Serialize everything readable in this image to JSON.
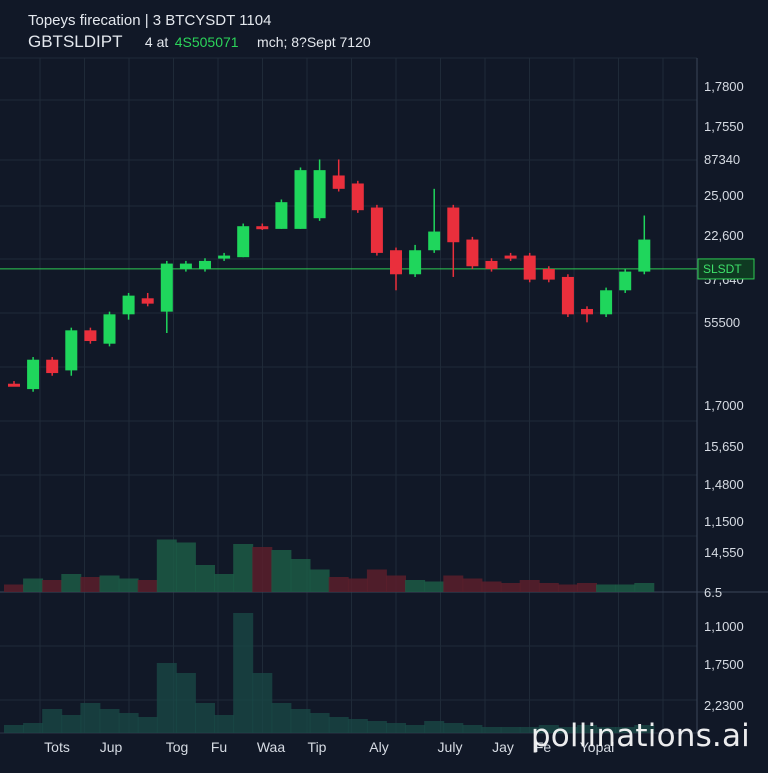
{
  "header": {
    "title": "Topeys firecation | 3 BTCYSDT 1104",
    "symbol": "GBTSLDIPT",
    "price_label": "4 at",
    "price_value": "4S505071",
    "meta": "mch; 8?Sept 7120"
  },
  "watermark": "pollinations.ai",
  "colors": {
    "background": "#111827",
    "grid": "#1f2a38",
    "up": "#1fd65c",
    "down": "#ea2f3c",
    "price_line": "#2ecc53",
    "axis_text": "#d6dbe3"
  },
  "chart_data": {
    "type": "candlestick",
    "price_scale": {
      "tick_labels": [
        "1,7800",
        "1,7550",
        "87340",
        "25,000",
        "22,600",
        "57,640",
        "55500",
        "1,7000",
        "15,650",
        "1,4800",
        "1,1500",
        "14,550",
        "6.5"
      ],
      "price_tag": "SLSDT",
      "price_tag_level": 0.605
    },
    "volume_scale": {
      "tick_labels": [
        "1,1000",
        "1,7500",
        "2,2300"
      ]
    },
    "x_axis": {
      "tick_labels": [
        "Tots",
        "Jup",
        "Tog",
        "Fu",
        "Waa",
        "Tip",
        "Aly",
        "July",
        "Jay",
        "Fe",
        "Yopal"
      ]
    },
    "candles": [
      {
        "o": 0.39,
        "c": 0.388,
        "h": 0.395,
        "l": 0.386
      },
      {
        "o": 0.38,
        "c": 0.435,
        "h": 0.44,
        "l": 0.375
      },
      {
        "o": 0.435,
        "c": 0.41,
        "h": 0.44,
        "l": 0.405
      },
      {
        "o": 0.415,
        "c": 0.49,
        "h": 0.495,
        "l": 0.405
      },
      {
        "o": 0.49,
        "c": 0.47,
        "h": 0.495,
        "l": 0.465
      },
      {
        "o": 0.465,
        "c": 0.52,
        "h": 0.525,
        "l": 0.46
      },
      {
        "o": 0.52,
        "c": 0.555,
        "h": 0.56,
        "l": 0.51
      },
      {
        "o": 0.55,
        "c": 0.54,
        "h": 0.56,
        "l": 0.535
      },
      {
        "o": 0.525,
        "c": 0.615,
        "h": 0.62,
        "l": 0.485
      },
      {
        "o": 0.605,
        "c": 0.615,
        "h": 0.62,
        "l": 0.6
      },
      {
        "o": 0.605,
        "c": 0.62,
        "h": 0.625,
        "l": 0.6
      },
      {
        "o": 0.625,
        "c": 0.63,
        "h": 0.635,
        "l": 0.62
      },
      {
        "o": 0.627,
        "c": 0.685,
        "h": 0.69,
        "l": 0.627
      },
      {
        "o": 0.685,
        "c": 0.68,
        "h": 0.69,
        "l": 0.678
      },
      {
        "o": 0.68,
        "c": 0.73,
        "h": 0.735,
        "l": 0.68
      },
      {
        "o": 0.68,
        "c": 0.79,
        "h": 0.795,
        "l": 0.68
      },
      {
        "o": 0.7,
        "c": 0.79,
        "h": 0.81,
        "l": 0.695
      },
      {
        "o": 0.78,
        "c": 0.755,
        "h": 0.81,
        "l": 0.75
      },
      {
        "o": 0.765,
        "c": 0.715,
        "h": 0.77,
        "l": 0.71
      },
      {
        "o": 0.72,
        "c": 0.635,
        "h": 0.725,
        "l": 0.63
      },
      {
        "o": 0.64,
        "c": 0.595,
        "h": 0.645,
        "l": 0.565
      },
      {
        "o": 0.595,
        "c": 0.64,
        "h": 0.65,
        "l": 0.59
      },
      {
        "o": 0.64,
        "c": 0.675,
        "h": 0.755,
        "l": 0.635
      },
      {
        "o": 0.72,
        "c": 0.655,
        "h": 0.725,
        "l": 0.59
      },
      {
        "o": 0.66,
        "c": 0.61,
        "h": 0.665,
        "l": 0.605
      },
      {
        "o": 0.62,
        "c": 0.605,
        "h": 0.625,
        "l": 0.6
      },
      {
        "o": 0.63,
        "c": 0.625,
        "h": 0.635,
        "l": 0.62
      },
      {
        "o": 0.63,
        "c": 0.585,
        "h": 0.635,
        "l": 0.58
      },
      {
        "o": 0.605,
        "c": 0.585,
        "h": 0.61,
        "l": 0.58
      },
      {
        "o": 0.59,
        "c": 0.52,
        "h": 0.595,
        "l": 0.515
      },
      {
        "o": 0.53,
        "c": 0.52,
        "h": 0.535,
        "l": 0.505
      },
      {
        "o": 0.52,
        "c": 0.565,
        "h": 0.57,
        "l": 0.515
      },
      {
        "o": 0.565,
        "c": 0.6,
        "h": 0.605,
        "l": 0.56
      },
      {
        "o": 0.6,
        "c": 0.66,
        "h": 0.705,
        "l": 0.595
      }
    ],
    "volume": [
      0.05,
      0.09,
      0.08,
      0.12,
      0.1,
      0.11,
      0.09,
      0.08,
      0.35,
      0.33,
      0.18,
      0.12,
      0.32,
      0.3,
      0.28,
      0.22,
      0.15,
      0.1,
      0.09,
      0.15,
      0.11,
      0.08,
      0.07,
      0.11,
      0.09,
      0.07,
      0.06,
      0.08,
      0.06,
      0.05,
      0.06,
      0.05,
      0.05,
      0.06
    ],
    "volume_lower": [
      0.04,
      0.05,
      0.12,
      0.09,
      0.15,
      0.12,
      0.1,
      0.08,
      0.35,
      0.3,
      0.15,
      0.09,
      0.6,
      0.3,
      0.15,
      0.12,
      0.1,
      0.08,
      0.07,
      0.06,
      0.05,
      0.04,
      0.06,
      0.05,
      0.04,
      0.03,
      0.03,
      0.03,
      0.04,
      0.03,
      0.04,
      0.03,
      0.03,
      0.04
    ]
  }
}
